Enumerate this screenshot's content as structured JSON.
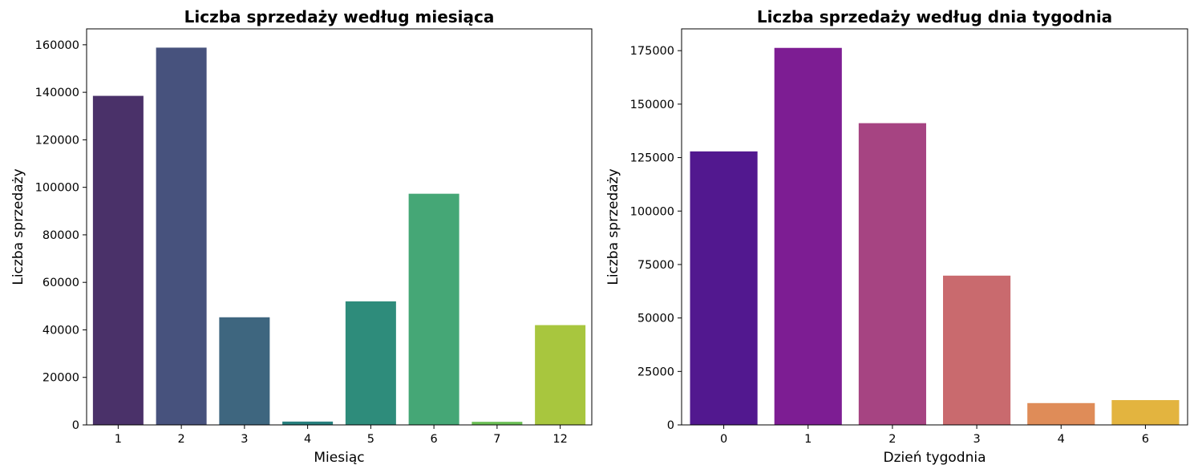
{
  "chart_data": [
    {
      "type": "bar",
      "title": "Liczba sprzedaży według miesiąca",
      "xlabel": "Miesiąc",
      "ylabel": "Liczba sprzedaży",
      "categories": [
        "1",
        "2",
        "3",
        "4",
        "5",
        "6",
        "7",
        "12"
      ],
      "values": [
        138500,
        158800,
        45300,
        1400,
        52000,
        97300,
        1300,
        42000
      ],
      "colors": [
        "#4a3169",
        "#47527d",
        "#3e667f",
        "#27807e",
        "#2e8c7b",
        "#45a776",
        "#6bbf56",
        "#a8c63e"
      ],
      "yticks": [
        0,
        20000,
        40000,
        60000,
        80000,
        100000,
        120000,
        140000,
        160000
      ],
      "ylim": [
        0,
        166700
      ],
      "grid": false
    },
    {
      "type": "bar",
      "title": "Liczba sprzedaży według dnia tygodnia",
      "xlabel": "Dzień tygodnia",
      "ylabel": "Liczba sprzedaży",
      "categories": [
        "0",
        "1",
        "2",
        "3",
        "4",
        "6"
      ],
      "values": [
        127900,
        176300,
        141100,
        69800,
        10200,
        11600
      ],
      "colors": [
        "#52188f",
        "#7d1d93",
        "#a64482",
        "#c96a6e",
        "#df8c58",
        "#e3b43f"
      ],
      "yticks": [
        0,
        25000,
        50000,
        75000,
        100000,
        125000,
        150000,
        175000
      ],
      "ylim": [
        0,
        185200
      ],
      "grid": false
    }
  ]
}
